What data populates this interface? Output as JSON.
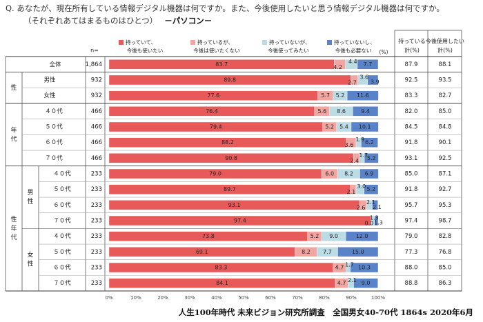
{
  "question": {
    "line1": "Q. あなたが、現在所有している情報デジタル機器は何ですか。また、今後使用したいと思う情報デジタル機器は何ですか。",
    "line2": "（それぞれあてはまるものはひとつ）",
    "subject": "－パソコン－"
  },
  "header": {
    "n_label": "n=",
    "pct_label": "(%)",
    "legend": [
      {
        "l1": "持っていて、",
        "l2": "今後も使いたい",
        "color": "#e8595a"
      },
      {
        "l1": "持っているが、",
        "l2": "今後は使いたくない",
        "color": "#f2a6a2"
      },
      {
        "l1": "持っていないが、",
        "l2": "今後使ってみたい",
        "color": "#bcdce5"
      },
      {
        "l1": "持っていないし、",
        "l2": "今後も必要ない",
        "color": "#5a82c9"
      }
    ],
    "col_own": [
      "持っている",
      "計(%)"
    ],
    "col_use": [
      "今後使用したい",
      "計(%)"
    ]
  },
  "groups": {
    "gender": "性",
    "age": [
      "年",
      "代"
    ],
    "sexage": [
      "性",
      "年",
      "代"
    ],
    "male": [
      "男",
      "性"
    ],
    "female": [
      "女",
      "性"
    ]
  },
  "source": "人生100年時代 未来ビジョン研究所調査　全国男女40-70代 1864s  2020年6月",
  "chart_data": {
    "type": "bar",
    "orientation": "horizontal",
    "stacked": true,
    "x_unit": "%",
    "xlim": [
      0,
      100
    ],
    "x_ticks": [
      "0%",
      "10%",
      "20%",
      "30%",
      "40%",
      "50%",
      "60%",
      "70%",
      "80%",
      "90%",
      "100%"
    ],
    "series": [
      {
        "name": "持っていて、今後も使いたい",
        "color": "#e8595a"
      },
      {
        "name": "持っているが、今後は使いたくない",
        "color": "#f2a6a2"
      },
      {
        "name": "持っていないが、今後使ってみたい",
        "color": "#bcdce5"
      },
      {
        "name": "持っていないし、今後も必要ない",
        "color": "#5a82c9"
      }
    ],
    "rows": [
      {
        "label": "全体",
        "n": "1,864",
        "values": [
          83.7,
          4.2,
          4.4,
          7.7
        ],
        "own": "87.9",
        "use": "88.1"
      },
      {
        "label": "男性",
        "n": "932",
        "values": [
          89.8,
          2.7,
          3.6,
          3.9
        ],
        "own": "92.5",
        "use": "93.5"
      },
      {
        "label": "女性",
        "n": "932",
        "values": [
          77.6,
          5.7,
          5.2,
          11.6
        ],
        "own": "83.3",
        "use": "82.7"
      },
      {
        "label": "４０代",
        "n": "466",
        "values": [
          76.4,
          5.6,
          8.6,
          9.4
        ],
        "own": "82.0",
        "use": "85.0"
      },
      {
        "label": "５０代",
        "n": "466",
        "values": [
          79.4,
          5.2,
          5.4,
          10.1
        ],
        "own": "84.5",
        "use": "84.8"
      },
      {
        "label": "６０代",
        "n": "466",
        "values": [
          88.2,
          3.6,
          1.9,
          6.2
        ],
        "own": "91.8",
        "use": "90.1"
      },
      {
        "label": "７０代",
        "n": "466",
        "values": [
          90.8,
          2.4,
          1.7,
          5.2
        ],
        "own": "93.1",
        "use": "92.5"
      },
      {
        "label": "４０代",
        "n": "233",
        "values": [
          79.0,
          6.0,
          8.2,
          6.9
        ],
        "own": "85.0",
        "use": "87.1"
      },
      {
        "label": "５０代",
        "n": "233",
        "values": [
          89.7,
          2.1,
          3.0,
          5.2
        ],
        "own": "91.8",
        "use": "92.7"
      },
      {
        "label": "６０代",
        "n": "233",
        "values": [
          93.1,
          2.6,
          2.1,
          2.1
        ],
        "own": "95.7",
        "use": "95.3"
      },
      {
        "label": "７０代",
        "n": "233",
        "values": [
          97.4,
          0.0,
          1.3,
          1.3
        ],
        "own": "97.4",
        "use": "98.7"
      },
      {
        "label": "４０代",
        "n": "233",
        "values": [
          73.8,
          5.2,
          9.0,
          12.0
        ],
        "own": "79.0",
        "use": "82.8"
      },
      {
        "label": "５０代",
        "n": "233",
        "values": [
          69.1,
          8.2,
          7.7,
          15.0
        ],
        "own": "77.3",
        "use": "76.8"
      },
      {
        "label": "６０代",
        "n": "233",
        "values": [
          83.3,
          4.7,
          1.7,
          10.3
        ],
        "own": "88.0",
        "use": "85.0"
      },
      {
        "label": "７０代",
        "n": "233",
        "values": [
          84.1,
          4.7,
          2.1,
          9.0
        ],
        "own": "88.8",
        "use": "86.3"
      }
    ]
  }
}
